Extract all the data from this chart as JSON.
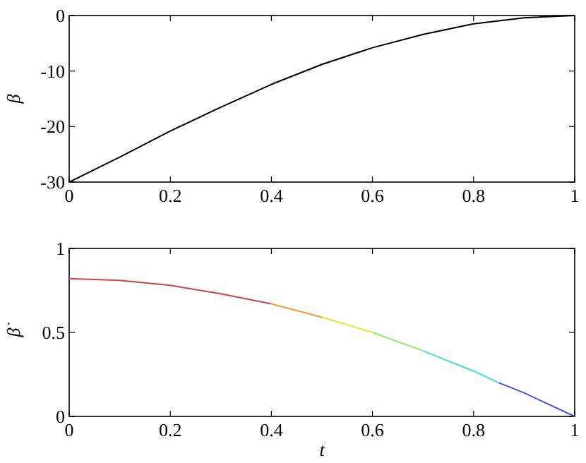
{
  "chart_data": [
    {
      "type": "line",
      "ylabel": "β",
      "xlim": [
        0,
        1
      ],
      "ylim": [
        -30,
        0
      ],
      "xticks": [
        0,
        0.2,
        0.4,
        0.6,
        0.8,
        1
      ],
      "yticks": [
        -30,
        -20,
        -10,
        0
      ],
      "grid": false,
      "marker": "none",
      "line_style": "solid",
      "series": [
        {
          "color": "#000000",
          "x": [
            0,
            0.1,
            0.2,
            0.3,
            0.4,
            0.5,
            0.6,
            0.7,
            0.8,
            0.9,
            1
          ],
          "values": [
            -30,
            -25.5,
            -20.8,
            -16.5,
            -12.4,
            -8.8,
            -5.8,
            -3.4,
            -1.5,
            -0.4,
            0
          ]
        }
      ]
    },
    {
      "type": "line",
      "ylabel": "β̇",
      "xlabel": "t",
      "xlim": [
        0,
        1
      ],
      "ylim": [
        0,
        1
      ],
      "xticks": [
        0,
        0.2,
        0.4,
        0.6,
        0.8,
        1
      ],
      "yticks": [
        0,
        0.5,
        1
      ],
      "grid": false,
      "marker": "none",
      "line_style": "solid",
      "series": [
        {
          "color": "#cc4444",
          "x": [
            0,
            0.1,
            0.2,
            0.3,
            0.4
          ],
          "values": [
            0.82,
            0.81,
            0.78,
            0.73,
            0.67
          ]
        },
        {
          "color": "#ff9933",
          "x": [
            0.4,
            0.5
          ],
          "values": [
            0.67,
            0.59
          ]
        },
        {
          "color": "#e6e633",
          "x": [
            0.5,
            0.6
          ],
          "values": [
            0.59,
            0.5
          ]
        },
        {
          "color": "#88ee66",
          "x": [
            0.6,
            0.7
          ],
          "values": [
            0.5,
            0.39
          ]
        },
        {
          "color": "#44dddd",
          "x": [
            0.7,
            0.8,
            0.85
          ],
          "values": [
            0.39,
            0.27,
            0.2
          ]
        },
        {
          "color": "#4455dd",
          "x": [
            0.85,
            0.9,
            1
          ],
          "values": [
            0.2,
            0.14,
            0
          ]
        }
      ]
    }
  ]
}
